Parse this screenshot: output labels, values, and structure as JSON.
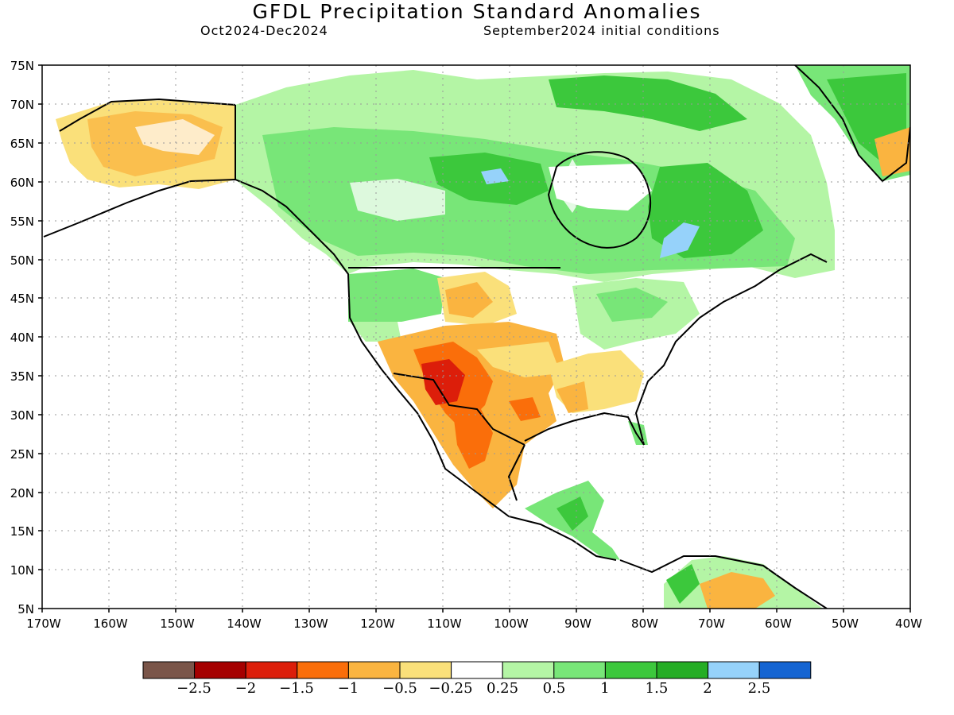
{
  "header": {
    "title": "GFDL Precipitation Standard Anomalies",
    "period": "Oct2024-Dec2024",
    "init": "September2024 initial conditions"
  },
  "map": {
    "lat_range": [
      5,
      75
    ],
    "lon_range": [
      -170,
      -40
    ],
    "lat_ticks": [
      "75N",
      "70N",
      "65N",
      "60N",
      "55N",
      "50N",
      "45N",
      "40N",
      "35N",
      "30N",
      "25N",
      "20N",
      "15N",
      "10N",
      "5N"
    ],
    "lon_ticks": [
      "170W",
      "160W",
      "150W",
      "140W",
      "130W",
      "120W",
      "110W",
      "100W",
      "90W",
      "80W",
      "70W",
      "60W",
      "50W",
      "40W"
    ],
    "gridlines": true
  },
  "colorbar": {
    "colors": [
      "#7a5549",
      "#a50000",
      "#dc1e0a",
      "#fa6e0a",
      "#fab440",
      "#fae07a",
      "#ffffff",
      "#b4f5a5",
      "#78e678",
      "#3cc83c",
      "#25ad25",
      "#96d2fa",
      "#1464d2"
    ],
    "labels": [
      "−2.5",
      "−2",
      "−1.5",
      "−1",
      "−0.5",
      "−0.25",
      "0.25",
      "0.5",
      "1",
      "1.5",
      "2",
      "2.5"
    ]
  },
  "anomaly_regions": [
    {
      "name": "alaska-dry",
      "color": "#fab440"
    },
    {
      "name": "canada-wet",
      "color": "#78e678"
    },
    {
      "name": "hudson-wet",
      "color": "#3cc83c"
    },
    {
      "name": "southwest-dry",
      "color": "#fa6e0a"
    },
    {
      "name": "arizona-newmexico-core",
      "color": "#dc1e0a"
    },
    {
      "name": "southeast-dry",
      "color": "#fae07a"
    },
    {
      "name": "central-america-wet",
      "color": "#3cc83c"
    },
    {
      "name": "greenland-wet",
      "color": "#3cc83c"
    },
    {
      "name": "venezuela-dry",
      "color": "#fab440"
    }
  ]
}
